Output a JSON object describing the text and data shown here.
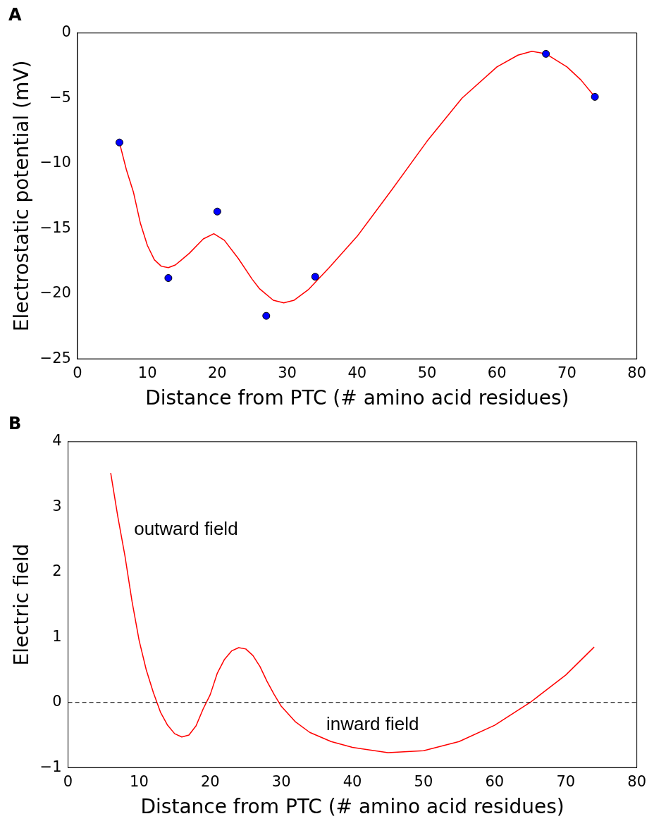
{
  "chart_data": [
    {
      "type": "scatter",
      "title": "A",
      "xlabel": "Distance from PTC (# amino acid residues)",
      "ylabel": "Electrostatic potential (mV)",
      "xlim": [
        0,
        80
      ],
      "ylim": [
        -25,
        0
      ],
      "xticks": [
        0,
        10,
        20,
        30,
        40,
        50,
        60,
        70,
        80
      ],
      "yticks": [
        -25,
        -20,
        -15,
        -10,
        -5,
        0
      ],
      "grid": false,
      "legend": false,
      "series": [
        {
          "type": "line",
          "marker": "none",
          "color": "#ff0000",
          "line_style": "solid",
          "x": [
            6,
            7,
            8,
            9,
            10,
            11,
            12,
            13,
            14,
            16,
            18,
            19.5,
            21,
            23,
            25,
            26,
            28,
            29.5,
            31,
            33,
            36,
            40,
            45,
            50,
            55,
            60,
            63,
            65,
            67,
            70,
            72,
            74
          ],
          "values": [
            -8.4,
            -10.5,
            -12.2,
            -14.6,
            -16.3,
            -17.4,
            -17.9,
            -18,
            -17.8,
            -16.9,
            -15.8,
            -15.4,
            -15.9,
            -17.3,
            -18.9,
            -19.6,
            -20.5,
            -20.7,
            -20.5,
            -19.7,
            -18,
            -15.6,
            -12,
            -8.3,
            -5,
            -2.6,
            -1.7,
            -1.4,
            -1.6,
            -2.6,
            -3.6,
            -4.9
          ]
        },
        {
          "marker": "circle",
          "color": "#0000ff",
          "x": [
            6,
            13,
            20,
            27,
            34,
            67,
            74
          ],
          "values": [
            -8.4,
            -18.8,
            -13.7,
            -21.7,
            -18.7,
            -1.6,
            -4.9
          ]
        }
      ]
    },
    {
      "type": "line",
      "title": "B",
      "xlabel": "Distance from PTC (# amino acid residues)",
      "ylabel": "Electric field",
      "xlim": [
        0,
        80
      ],
      "ylim": [
        -1,
        4
      ],
      "xticks": [
        0,
        10,
        20,
        30,
        40,
        50,
        60,
        70,
        80
      ],
      "yticks": [
        -1,
        0,
        1,
        2,
        3,
        4
      ],
      "grid": false,
      "legend": false,
      "series": [
        {
          "color": "#ff0000",
          "line_style": "solid",
          "x": [
            6,
            7,
            8,
            9,
            10,
            11,
            12,
            13,
            14,
            15,
            16,
            17,
            18,
            19,
            20,
            21,
            22,
            23,
            24,
            25,
            26,
            27,
            28,
            29,
            30,
            32,
            34,
            37,
            40,
            45,
            50,
            55,
            60,
            65,
            70,
            74
          ],
          "values": [
            3.52,
            2.85,
            2.25,
            1.55,
            0.95,
            0.5,
            0.15,
            -0.15,
            -0.35,
            -0.48,
            -0.53,
            -0.5,
            -0.36,
            -0.1,
            0.12,
            0.45,
            0.66,
            0.79,
            0.84,
            0.82,
            0.72,
            0.55,
            0.32,
            0.12,
            -0.06,
            -0.3,
            -0.46,
            -0.6,
            -0.69,
            -0.77,
            -0.74,
            -0.6,
            -0.35,
            0,
            0.42,
            0.85
          ]
        }
      ],
      "ref_lines": [
        {
          "axis": "y",
          "value": 0,
          "color": "#000000",
          "line_style": "dashed"
        }
      ],
      "annotations": [
        "outward field",
        "inward field"
      ]
    }
  ]
}
